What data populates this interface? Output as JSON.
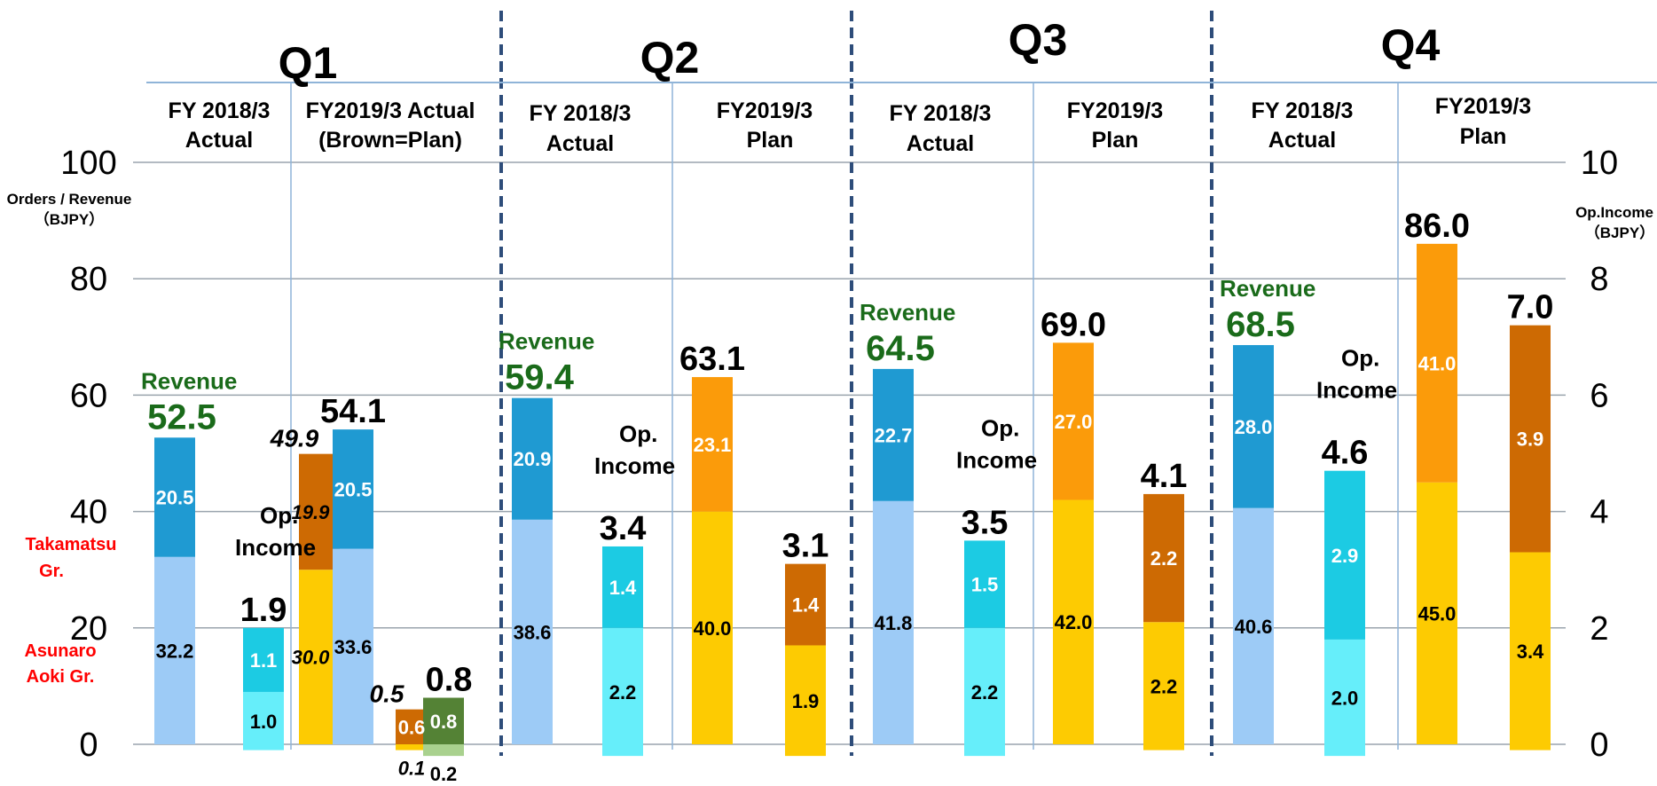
{
  "chart_data": {
    "type": "bar",
    "stacked": true,
    "grid": true,
    "quarters": [
      {
        "title": "Q1",
        "columns": [
          {
            "label_line1": "FY 2018/3",
            "label_line2": "Actual"
          },
          {
            "label_line1": "FY2019/3 Actual",
            "label_line2": "(Brown=Plan)"
          }
        ]
      },
      {
        "title": "Q2",
        "columns": [
          {
            "label_line1": "FY 2018/3",
            "label_line2": "Actual"
          },
          {
            "label_line1": "FY2019/3",
            "label_line2": "Plan"
          }
        ]
      },
      {
        "title": "Q3",
        "columns": [
          {
            "label_line1": "FY 2018/3",
            "label_line2": "Actual"
          },
          {
            "label_line1": "FY2019/3",
            "label_line2": "Plan"
          }
        ]
      },
      {
        "title": "Q4",
        "columns": [
          {
            "label_line1": "FY 2018/3",
            "label_line2": "Actual"
          },
          {
            "label_line1": "FY2019/3",
            "label_line2": "Plan"
          }
        ]
      }
    ],
    "y_left": {
      "label_line1": "Orders / Revenue",
      "label_line2": "（BJPY）",
      "min": 0,
      "max": 100,
      "ticks": [
        "0",
        "20",
        "40",
        "60",
        "80",
        "100"
      ]
    },
    "y_right": {
      "label_line1": "Op.Income",
      "label_line2": "（BJPY）",
      "min": 0,
      "max": 10,
      "ticks": [
        "0",
        "2",
        "4",
        "6",
        "8",
        "10"
      ]
    },
    "legend_groups": {
      "upper_line1": "Takamatsu",
      "upper_line2": "Gr.",
      "lower_line1": "Asunaro",
      "lower_line2": "Aoki Gr."
    },
    "labels": {
      "revenue": "Revenue",
      "op_line1": "Op.",
      "op_line2": "Income"
    },
    "bars": [
      {
        "id": "q1-18-rev",
        "axis": "left",
        "segments": [
          {
            "value": 32.2,
            "label": "32.2",
            "color": "#9dcbf6",
            "text_color": "#000000"
          },
          {
            "value": 20.5,
            "label": "20.5",
            "color": "#1f9ad2",
            "text_color": "#ffffff"
          }
        ],
        "total": "52.5",
        "total_style": "revenue",
        "tag": "revenue"
      },
      {
        "id": "q1-18-op",
        "axis": "right",
        "segments": [
          {
            "value": 1.0,
            "label": "1.0",
            "color": "#66eefa",
            "text_color": "#000000"
          },
          {
            "value": 1.1,
            "label": "1.1",
            "color": "#1ccbe3",
            "text_color": "#ffffff"
          }
        ],
        "total": "1.9",
        "total_style": "plain",
        "tag": "op",
        "baseline_drop": 0.1
      },
      {
        "id": "q1-19-plan-rev",
        "axis": "left",
        "segments": [
          {
            "value": 30.0,
            "label": "30.0",
            "color": "#fdcb02",
            "text_color": "#000000",
            "italic": true
          },
          {
            "value": 19.9,
            "label": "19.9",
            "color": "#cd6a03",
            "text_color": "#000000",
            "italic": true
          }
        ],
        "total": "49.9",
        "total_style": "italic"
      },
      {
        "id": "q1-19-act-rev",
        "axis": "left",
        "segments": [
          {
            "value": 33.6,
            "label": "33.6",
            "color": "#9dcbf6",
            "text_color": "#000000"
          },
          {
            "value": 20.5,
            "label": "20.5",
            "color": "#1f9ad2",
            "text_color": "#ffffff"
          }
        ],
        "total": "54.1",
        "total_style": "plain"
      },
      {
        "id": "q1-19-plan-op",
        "axis": "right",
        "segments": [
          {
            "value": 0.1,
            "label": "0.1",
            "color": "#fdcb02",
            "text_color": "#000000",
            "italic": true,
            "label_below": true
          },
          {
            "value": 0.6,
            "label": "0.6",
            "color": "#cd6a03",
            "text_color": "#ffffff"
          }
        ],
        "total": "0.5",
        "total_style": "italic",
        "baseline_drop": 0.1
      },
      {
        "id": "q1-19-act-op",
        "axis": "right",
        "segments": [
          {
            "value": 0.2,
            "label": "0.2",
            "color": "#a9d18e",
            "text_color": "#000000",
            "label_below": true
          },
          {
            "value": 0.8,
            "label": "0.8",
            "color": "#548235",
            "text_color": "#ffffff"
          }
        ],
        "total": "0.8",
        "total_style": "plain",
        "baseline_drop": 0.2
      },
      {
        "id": "q2-18-rev",
        "axis": "left",
        "segments": [
          {
            "value": 38.6,
            "label": "38.6",
            "color": "#9dcbf6",
            "text_color": "#000000"
          },
          {
            "value": 20.9,
            "label": "20.9",
            "color": "#1f9ad2",
            "text_color": "#ffffff"
          }
        ],
        "total": "59.4",
        "total_style": "revenue",
        "tag": "revenue"
      },
      {
        "id": "q2-18-op",
        "axis": "right",
        "segments": [
          {
            "value": 2.2,
            "label": "2.2",
            "color": "#66eefa",
            "text_color": "#000000"
          },
          {
            "value": 1.4,
            "label": "1.4",
            "color": "#1ccbe3",
            "text_color": "#ffffff"
          }
        ],
        "total": "3.4",
        "total_style": "plain",
        "tag": "op",
        "baseline_drop": 0.2
      },
      {
        "id": "q2-19-rev",
        "axis": "left",
        "segments": [
          {
            "value": 40.0,
            "label": "40.0",
            "color": "#fdcb02",
            "text_color": "#000000"
          },
          {
            "value": 23.1,
            "label": "23.1",
            "color": "#fb9b0a",
            "text_color": "#ffffff"
          }
        ],
        "total": "63.1",
        "total_style": "plain"
      },
      {
        "id": "q2-19-op",
        "axis": "right",
        "segments": [
          {
            "value": 1.9,
            "label": "1.9",
            "color": "#fdcb02",
            "text_color": "#000000"
          },
          {
            "value": 1.4,
            "label": "1.4",
            "color": "#cd6a03",
            "text_color": "#ffffff"
          }
        ],
        "total": "3.1",
        "total_style": "plain",
        "baseline_drop": 0.2
      },
      {
        "id": "q3-18-rev",
        "axis": "left",
        "segments": [
          {
            "value": 41.8,
            "label": "41.8",
            "color": "#9dcbf6",
            "text_color": "#000000"
          },
          {
            "value": 22.7,
            "label": "22.7",
            "color": "#1f9ad2",
            "text_color": "#ffffff"
          }
        ],
        "total": "64.5",
        "total_style": "revenue",
        "tag": "revenue"
      },
      {
        "id": "q3-18-op",
        "axis": "right",
        "segments": [
          {
            "value": 2.2,
            "label": "2.2",
            "color": "#66eefa",
            "text_color": "#000000"
          },
          {
            "value": 1.5,
            "label": "1.5",
            "color": "#1ccbe3",
            "text_color": "#ffffff"
          }
        ],
        "total": "3.5",
        "total_style": "plain",
        "tag": "op",
        "baseline_drop": 0.2
      },
      {
        "id": "q3-19-rev",
        "axis": "left",
        "segments": [
          {
            "value": 42.0,
            "label": "42.0",
            "color": "#fdcb02",
            "text_color": "#000000"
          },
          {
            "value": 27.0,
            "label": "27.0",
            "color": "#fb9b0a",
            "text_color": "#ffffff"
          }
        ],
        "total": "69.0",
        "total_style": "plain"
      },
      {
        "id": "q3-19-op",
        "axis": "right",
        "segments": [
          {
            "value": 2.2,
            "label": "2.2",
            "color": "#fdcb02",
            "text_color": "#000000"
          },
          {
            "value": 2.2,
            "label": "2.2",
            "color": "#cd6a03",
            "text_color": "#ffffff"
          }
        ],
        "total": "4.1",
        "total_style": "plain",
        "baseline_drop": 0.1
      },
      {
        "id": "q4-18-rev",
        "axis": "left",
        "segments": [
          {
            "value": 40.6,
            "label": "40.6",
            "color": "#9dcbf6",
            "text_color": "#000000"
          },
          {
            "value": 28.0,
            "label": "28.0",
            "color": "#1f9ad2",
            "text_color": "#ffffff"
          }
        ],
        "total": "68.5",
        "total_style": "revenue",
        "tag": "revenue"
      },
      {
        "id": "q4-18-op",
        "axis": "right",
        "segments": [
          {
            "value": 2.0,
            "label": "2.0",
            "color": "#66eefa",
            "text_color": "#000000"
          },
          {
            "value": 2.9,
            "label": "2.9",
            "color": "#1ccbe3",
            "text_color": "#ffffff"
          }
        ],
        "total": "4.6",
        "total_style": "plain",
        "tag": "op",
        "baseline_drop": 0.2
      },
      {
        "id": "q4-19-rev",
        "axis": "left",
        "segments": [
          {
            "value": 45.0,
            "label": "45.0",
            "color": "#fdcb02",
            "text_color": "#000000"
          },
          {
            "value": 41.0,
            "label": "41.0",
            "color": "#fb9b0a",
            "text_color": "#ffffff"
          }
        ],
        "total": "86.0",
        "total_style": "plain"
      },
      {
        "id": "q4-19-op",
        "axis": "right",
        "segments": [
          {
            "value": 3.4,
            "label": "3.4",
            "color": "#fdcb02",
            "text_color": "#000000"
          },
          {
            "value": 3.9,
            "label": "3.9",
            "color": "#cd6a03",
            "text_color": "#ffffff"
          }
        ],
        "total": "7.0",
        "total_style": "plain",
        "baseline_drop": 0.1
      }
    ]
  }
}
